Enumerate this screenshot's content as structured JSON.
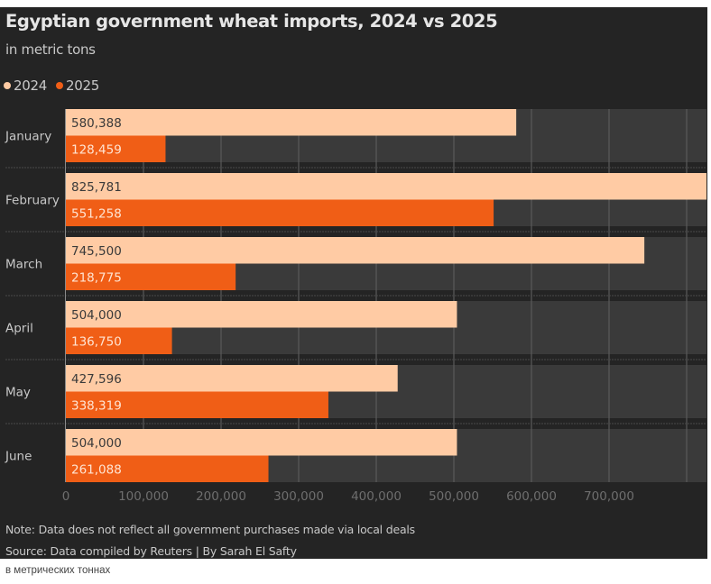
{
  "chart_data": {
    "type": "bar",
    "orientation": "horizontal",
    "title": "Egyptian government wheat imports, 2024 vs 2025",
    "subtitle": "in metric tons",
    "categories": [
      "January",
      "February",
      "March",
      "April",
      "May",
      "June"
    ],
    "series": [
      {
        "name": "2024",
        "color": "#ffcba4",
        "label_color": "#3a3a3a",
        "values": [
          580388,
          825781,
          745500,
          504000,
          427596,
          504000
        ]
      },
      {
        "name": "2025",
        "color": "#f05e16",
        "label_color": "#ffe4d2",
        "values": [
          128459,
          551258,
          218775,
          136750,
          338319,
          261088
        ]
      }
    ],
    "value_labels": {
      "2024": [
        "580,388",
        "825,781",
        "745,500",
        "504,000",
        "427,596",
        "504,000"
      ],
      "2025": [
        "128,459",
        "551,258",
        "218,775",
        "136,750",
        "338,319",
        "261,088"
      ]
    },
    "xlim": [
      0,
      825781
    ],
    "xticks": [
      0,
      100000,
      200000,
      300000,
      400000,
      500000,
      600000,
      700000,
      800000
    ],
    "xtick_labels": [
      "0",
      "100,000",
      "200,000",
      "300,000",
      "400,000",
      "500,000",
      "600,000",
      "700,000",
      ""
    ],
    "xlabel": "",
    "ylabel": "",
    "grid": true,
    "legend_position": "top-left"
  },
  "legend": {
    "items": [
      {
        "label": "2024",
        "color": "#ffcba4"
      },
      {
        "label": "2025",
        "color": "#f05e16"
      }
    ]
  },
  "footer": {
    "note": "Note: Data does not reflect all government purchases made via local deals",
    "source": "Source: Data compiled by Reuters | By Sarah El Safty"
  },
  "caption": "в метрических тоннах",
  "colors": {
    "background": "#242424",
    "band": "#3a3a3a",
    "grid": "#5a5a5a",
    "axis_text": "#6e6e6e",
    "category_text": "#c8c8c8"
  }
}
